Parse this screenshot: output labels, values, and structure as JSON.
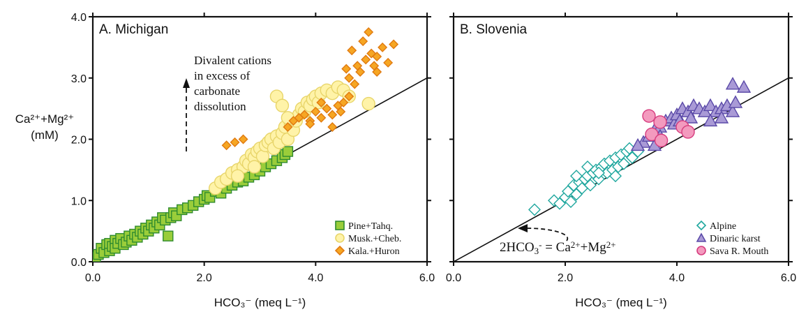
{
  "ylabel_line1": "Ca²⁺+Mg²⁺",
  "ylabel_line2": "(mM)",
  "chart_data": [
    {
      "type": "scatter",
      "title": "A. Michigan",
      "xlabel": "HCO₃⁻ (meq L⁻¹)",
      "xlim": [
        0,
        6
      ],
      "ylim": [
        0,
        4
      ],
      "x_ticks": [
        "0.0",
        "2.0",
        "4.0",
        "6.0"
      ],
      "y_ticks": [
        "0.0",
        "1.0",
        "2.0",
        "3.0",
        "4.0"
      ],
      "reference_line": {
        "slope": 0.5
      },
      "annotation": [
        "Divalent cations",
        "in excess of",
        "carbonate",
        "dissolution"
      ],
      "legend_position": "bottom-right",
      "series": [
        {
          "name": "Pine+Tahq.",
          "marker": "square",
          "fill": "#9ACD3A",
          "stroke": "#2E8B2E",
          "points": [
            [
              0.05,
              0.08
            ],
            [
              0.1,
              0.12
            ],
            [
              0.15,
              0.22
            ],
            [
              0.2,
              0.15
            ],
            [
              0.25,
              0.28
            ],
            [
              0.3,
              0.18
            ],
            [
              0.3,
              0.3
            ],
            [
              0.35,
              0.25
            ],
            [
              0.4,
              0.35
            ],
            [
              0.4,
              0.22
            ],
            [
              0.45,
              0.3
            ],
            [
              0.5,
              0.38
            ],
            [
              0.55,
              0.28
            ],
            [
              0.6,
              0.32
            ],
            [
              0.65,
              0.42
            ],
            [
              0.7,
              0.35
            ],
            [
              0.75,
              0.45
            ],
            [
              0.8,
              0.4
            ],
            [
              0.85,
              0.5
            ],
            [
              0.9,
              0.45
            ],
            [
              0.95,
              0.55
            ],
            [
              1.0,
              0.5
            ],
            [
              1.05,
              0.6
            ],
            [
              1.1,
              0.55
            ],
            [
              1.15,
              0.65
            ],
            [
              1.2,
              0.6
            ],
            [
              1.25,
              0.72
            ],
            [
              1.3,
              0.68
            ],
            [
              1.35,
              0.42
            ],
            [
              1.4,
              0.72
            ],
            [
              1.45,
              0.8
            ],
            [
              1.5,
              0.75
            ],
            [
              1.6,
              0.85
            ],
            [
              1.7,
              0.88
            ],
            [
              1.8,
              0.92
            ],
            [
              1.9,
              0.98
            ],
            [
              2.0,
              1.02
            ],
            [
              2.05,
              1.08
            ],
            [
              2.1,
              1.05
            ],
            [
              2.2,
              1.15
            ],
            [
              2.3,
              1.12
            ],
            [
              2.4,
              1.2
            ],
            [
              2.5,
              1.25
            ],
            [
              2.6,
              1.3
            ],
            [
              2.7,
              1.32
            ],
            [
              2.8,
              1.38
            ],
            [
              2.9,
              1.42
            ],
            [
              3.0,
              1.48
            ],
            [
              3.1,
              1.55
            ],
            [
              3.2,
              1.6
            ],
            [
              3.3,
              1.65
            ],
            [
              3.4,
              1.7
            ],
            [
              3.45,
              1.75
            ],
            [
              3.5,
              1.8
            ]
          ]
        },
        {
          "name": "Musk.+Cheb.",
          "marker": "circle",
          "fill": "#FFF3A8",
          "stroke": "#E8D56A",
          "points": [
            [
              2.2,
              1.2
            ],
            [
              2.3,
              1.3
            ],
            [
              2.4,
              1.35
            ],
            [
              2.5,
              1.45
            ],
            [
              2.6,
              1.5
            ],
            [
              2.7,
              1.55
            ],
            [
              2.75,
              1.65
            ],
            [
              2.8,
              1.6
            ],
            [
              2.85,
              1.75
            ],
            [
              2.9,
              1.7
            ],
            [
              2.95,
              1.8
            ],
            [
              3.0,
              1.85
            ],
            [
              3.05,
              1.72
            ],
            [
              3.1,
              1.9
            ],
            [
              3.15,
              1.95
            ],
            [
              3.2,
              2.0
            ],
            [
              3.25,
              1.85
            ],
            [
              3.3,
              2.05
            ],
            [
              3.35,
              1.95
            ],
            [
              3.4,
              2.1
            ],
            [
              3.45,
              2.2
            ],
            [
              3.5,
              2.0
            ],
            [
              3.55,
              2.25
            ],
            [
              3.6,
              2.15
            ],
            [
              3.65,
              2.3
            ],
            [
              3.7,
              2.4
            ],
            [
              3.75,
              2.5
            ],
            [
              3.8,
              2.45
            ],
            [
              3.85,
              2.6
            ],
            [
              3.9,
              2.55
            ],
            [
              3.95,
              2.65
            ],
            [
              4.0,
              2.7
            ],
            [
              4.05,
              2.6
            ],
            [
              4.1,
              2.75
            ],
            [
              4.2,
              2.8
            ],
            [
              4.3,
              2.75
            ],
            [
              4.4,
              2.85
            ],
            [
              4.5,
              2.8
            ],
            [
              4.6,
              2.7
            ],
            [
              4.95,
              2.58
            ],
            [
              3.3,
              2.7
            ],
            [
              3.4,
              2.55
            ],
            [
              2.6,
              1.4
            ],
            [
              2.9,
              1.55
            ],
            [
              3.5,
              2.35
            ]
          ]
        },
        {
          "name": "Kala.+Huron",
          "marker": "diamond",
          "fill": "#F6A623",
          "stroke": "#E07A10",
          "points": [
            [
              3.5,
              2.2
            ],
            [
              3.6,
              2.3
            ],
            [
              3.7,
              2.35
            ],
            [
              3.8,
              2.4
            ],
            [
              3.9,
              2.3
            ],
            [
              4.0,
              2.45
            ],
            [
              4.1,
              2.35
            ],
            [
              4.2,
              2.5
            ],
            [
              4.3,
              2.4
            ],
            [
              4.4,
              2.55
            ],
            [
              4.5,
              2.6
            ],
            [
              4.6,
              2.7
            ],
            [
              4.6,
              3.0
            ],
            [
              4.7,
              2.9
            ],
            [
              4.75,
              3.2
            ],
            [
              4.8,
              3.1
            ],
            [
              4.9,
              3.3
            ],
            [
              5.0,
              3.4
            ],
            [
              5.05,
              3.2
            ],
            [
              5.1,
              3.35
            ],
            [
              5.2,
              3.5
            ],
            [
              5.3,
              3.25
            ],
            [
              5.4,
              3.55
            ],
            [
              4.55,
              3.15
            ],
            [
              4.65,
              3.45
            ],
            [
              4.85,
              3.6
            ],
            [
              4.95,
              3.75
            ],
            [
              5.1,
              3.1
            ],
            [
              2.4,
              1.9
            ],
            [
              2.55,
              1.95
            ],
            [
              2.7,
              2.0
            ],
            [
              3.9,
              2.25
            ],
            [
              4.1,
              2.6
            ],
            [
              4.3,
              2.2
            ],
            [
              4.45,
              2.45
            ]
          ]
        }
      ]
    },
    {
      "type": "scatter",
      "title": "B. Slovenia",
      "xlabel": "HCO₃⁻ (meq L⁻¹)",
      "xlim": [
        0,
        6
      ],
      "ylim": [
        0,
        4
      ],
      "x_ticks": [
        "0.0",
        "2.0",
        "4.0",
        "6.0"
      ],
      "reference_line": {
        "slope": 0.5
      },
      "annotation": [
        "2HCO",
        "3",
        "-",
        " = Ca",
        "2+",
        "+Mg",
        "2+"
      ],
      "legend_position": "bottom-right",
      "series": [
        {
          "name": "Alpine",
          "marker": "diamond",
          "fill": "#FFFFFF",
          "stroke": "#1FA79E",
          "points": [
            [
              1.45,
              0.85
            ],
            [
              1.8,
              1.0
            ],
            [
              1.9,
              0.95
            ],
            [
              2.0,
              1.05
            ],
            [
              2.05,
              1.15
            ],
            [
              2.1,
              0.98
            ],
            [
              2.15,
              1.25
            ],
            [
              2.2,
              1.1
            ],
            [
              2.25,
              1.3
            ],
            [
              2.3,
              1.2
            ],
            [
              2.35,
              1.35
            ],
            [
              2.4,
              1.4
            ],
            [
              2.45,
              1.25
            ],
            [
              2.5,
              1.45
            ],
            [
              2.55,
              1.5
            ],
            [
              2.6,
              1.35
            ],
            [
              2.65,
              1.55
            ],
            [
              2.7,
              1.6
            ],
            [
              2.75,
              1.45
            ],
            [
              2.8,
              1.65
            ],
            [
              2.85,
              1.5
            ],
            [
              2.9,
              1.7
            ],
            [
              2.95,
              1.55
            ],
            [
              3.0,
              1.75
            ],
            [
              3.05,
              1.6
            ],
            [
              3.1,
              1.8
            ],
            [
              3.15,
              1.85
            ],
            [
              3.2,
              1.7
            ],
            [
              3.3,
              1.8
            ],
            [
              2.2,
              1.4
            ],
            [
              2.6,
              1.45
            ],
            [
              2.9,
              1.4
            ],
            [
              2.4,
              1.55
            ]
          ]
        },
        {
          "name": "Dinaric karst",
          "marker": "triangle",
          "fill": "#A99AD6",
          "stroke": "#5B4AA8",
          "points": [
            [
              3.4,
              1.95
            ],
            [
              3.5,
              2.05
            ],
            [
              3.6,
              2.15
            ],
            [
              3.7,
              2.2
            ],
            [
              3.8,
              2.3
            ],
            [
              3.9,
              2.35
            ],
            [
              3.95,
              2.25
            ],
            [
              4.0,
              2.4
            ],
            [
              4.05,
              2.3
            ],
            [
              4.1,
              2.5
            ],
            [
              4.2,
              2.45
            ],
            [
              4.25,
              2.35
            ],
            [
              4.3,
              2.55
            ],
            [
              4.4,
              2.5
            ],
            [
              4.5,
              2.45
            ],
            [
              4.6,
              2.55
            ],
            [
              4.7,
              2.45
            ],
            [
              4.8,
              2.5
            ],
            [
              4.9,
              2.55
            ],
            [
              5.0,
              2.45
            ],
            [
              5.05,
              2.6
            ],
            [
              5.0,
              2.9
            ],
            [
              5.2,
              2.85
            ],
            [
              4.6,
              2.3
            ],
            [
              4.8,
              2.35
            ],
            [
              3.6,
              1.9
            ],
            [
              3.7,
              2.05
            ],
            [
              3.3,
              1.9
            ]
          ]
        },
        {
          "name": "Sava R. Mouth",
          "marker": "circle",
          "fill": "#F39ABE",
          "stroke": "#D63C7E",
          "points": [
            [
              3.5,
              2.38
            ],
            [
              3.55,
              2.08
            ],
            [
              3.7,
              2.28
            ],
            [
              3.72,
              1.98
            ],
            [
              4.1,
              2.2
            ],
            [
              4.2,
              2.12
            ]
          ]
        }
      ]
    }
  ]
}
